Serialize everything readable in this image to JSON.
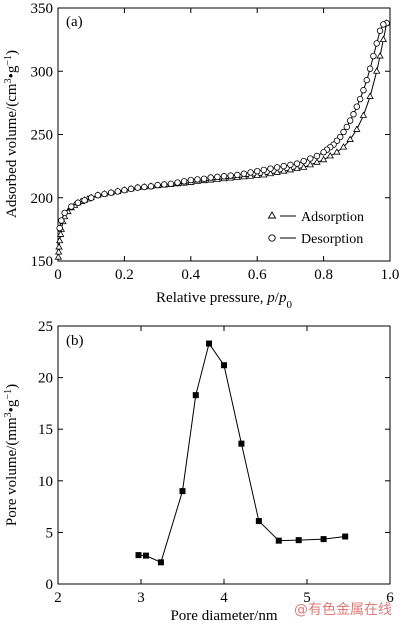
{
  "colors": {
    "axis": "#000000",
    "line": "#000000",
    "watermark": "#e07a7a"
  },
  "watermark": "@有色金属在线",
  "chart_data": [
    {
      "type": "line",
      "panel": "(a)",
      "xlabel_main": "Relative pressure, ",
      "xlabel_var": "p",
      "xlabel_slash": "/",
      "xlabel_var0": "p",
      "xlabel_sub": "0",
      "ylabel_main": "Adsorbed volume/(cm",
      "ylabel_sup1": "3",
      "ylabel_mid": "•g",
      "ylabel_sup2": "−1",
      "ylabel_end": ")",
      "xlim": [
        0,
        1.0
      ],
      "ylim": [
        150,
        350
      ],
      "xticks": [
        0,
        0.2,
        0.4,
        0.6,
        0.8,
        1.0
      ],
      "xtick_labels": [
        "0",
        "0.2",
        "0.4",
        "0.6",
        "0.8",
        "1.0"
      ],
      "yticks": [
        150,
        200,
        250,
        300,
        350
      ],
      "ytick_labels": [
        "150",
        "200",
        "250",
        "300",
        "350"
      ],
      "legend_position": "bottom-right",
      "series": [
        {
          "name": "Adsorption",
          "marker": "triangle",
          "x": [
            0.001,
            0.002,
            0.003,
            0.005,
            0.008,
            0.01,
            0.015,
            0.02,
            0.03,
            0.04,
            0.05,
            0.06,
            0.07,
            0.08,
            0.09,
            0.1,
            0.12,
            0.14,
            0.16,
            0.18,
            0.2,
            0.22,
            0.24,
            0.26,
            0.28,
            0.3,
            0.32,
            0.34,
            0.36,
            0.38,
            0.4,
            0.42,
            0.44,
            0.46,
            0.48,
            0.5,
            0.52,
            0.54,
            0.56,
            0.58,
            0.6,
            0.62,
            0.64,
            0.66,
            0.68,
            0.7,
            0.72,
            0.74,
            0.76,
            0.78,
            0.8,
            0.82,
            0.84,
            0.86,
            0.88,
            0.9,
            0.92,
            0.94,
            0.96,
            0.97,
            0.98,
            0.99
          ],
          "y": [
            153,
            157,
            161,
            166,
            171,
            175,
            181,
            185,
            189,
            192,
            194,
            196,
            197,
            198,
            199,
            200,
            202,
            203,
            204,
            205,
            206,
            207,
            208,
            208.5,
            209,
            209.5,
            210,
            210.5,
            211,
            211.5,
            212,
            213,
            213.5,
            214,
            214.5,
            215,
            215.5,
            216,
            216.5,
            217,
            217.5,
            218,
            219,
            220,
            221,
            222,
            223,
            224,
            226,
            228,
            230,
            233,
            236,
            240,
            246,
            254,
            265,
            280,
            300,
            312,
            325,
            338
          ]
        },
        {
          "name": "Desorption",
          "marker": "circle",
          "x": [
            0.99,
            0.98,
            0.97,
            0.96,
            0.95,
            0.94,
            0.93,
            0.92,
            0.91,
            0.9,
            0.89,
            0.88,
            0.87,
            0.86,
            0.85,
            0.84,
            0.83,
            0.82,
            0.81,
            0.8,
            0.78,
            0.76,
            0.74,
            0.72,
            0.7,
            0.68,
            0.66,
            0.64,
            0.62,
            0.6,
            0.58,
            0.56,
            0.54,
            0.52,
            0.5,
            0.48,
            0.46,
            0.44,
            0.42,
            0.4,
            0.38,
            0.36,
            0.34,
            0.32,
            0.3,
            0.28,
            0.26,
            0.24,
            0.22,
            0.2,
            0.18,
            0.16,
            0.14,
            0.12,
            0.1,
            0.08,
            0.06,
            0.04,
            0.02,
            0.01,
            0.005
          ],
          "y": [
            338,
            337,
            332,
            322,
            312,
            302,
            293,
            285,
            278,
            272,
            266,
            261,
            256,
            252,
            248,
            245,
            242,
            240,
            238,
            236,
            233,
            231,
            229,
            227,
            226,
            225,
            224,
            223,
            222,
            221,
            220,
            219,
            218,
            217.5,
            217,
            216.5,
            216,
            215,
            214.5,
            214,
            213,
            212,
            211,
            210.5,
            210,
            209,
            208.5,
            208,
            207,
            206,
            205,
            204,
            203,
            202,
            200,
            198,
            196,
            193,
            188,
            182,
            176
          ]
        }
      ]
    },
    {
      "type": "line",
      "panel": "(b)",
      "xlabel": "Pore diameter/nm",
      "ylabel_main": "Pore volume/(mm",
      "ylabel_sup1": "3",
      "ylabel_mid": "•g",
      "ylabel_sup2": "−1",
      "ylabel_end": ")",
      "xlim": [
        2,
        6
      ],
      "ylim": [
        0,
        25
      ],
      "xticks": [
        2,
        3,
        4,
        5,
        6
      ],
      "xtick_labels": [
        "2",
        "3",
        "4",
        "5",
        "6"
      ],
      "yticks": [
        0,
        5,
        10,
        15,
        20,
        25
      ],
      "ytick_labels": [
        "0",
        "5",
        "10",
        "15",
        "20",
        "25"
      ],
      "series": [
        {
          "marker": "square",
          "x": [
            2.97,
            3.06,
            3.24,
            3.5,
            3.66,
            3.82,
            4.0,
            4.21,
            4.42,
            4.66,
            4.9,
            5.2,
            5.46
          ],
          "y": [
            2.8,
            2.75,
            2.1,
            9.0,
            18.3,
            23.3,
            21.2,
            13.6,
            6.1,
            4.2,
            4.25,
            4.35,
            4.6
          ]
        }
      ]
    }
  ]
}
